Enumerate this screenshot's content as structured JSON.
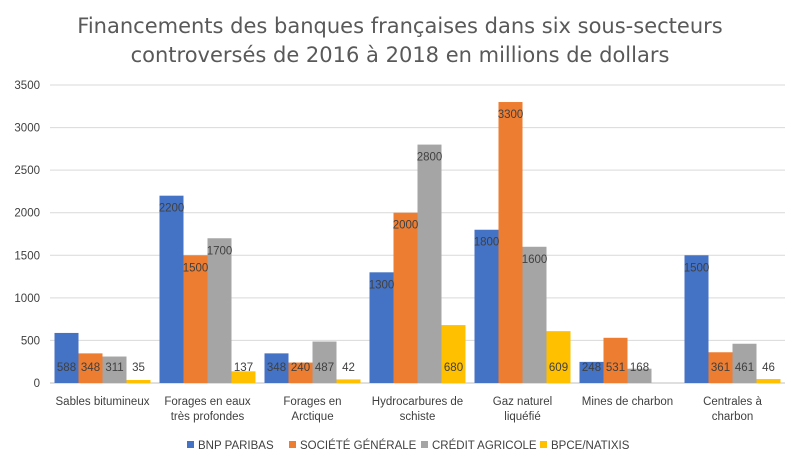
{
  "chart_data": {
    "type": "bar",
    "title_lines": [
      "Financements des banques françaises dans six sous-secteurs",
      "controversés de 2016 à 2018  en millions de dollars"
    ],
    "categories": [
      [
        "Sables  bitumineux"
      ],
      [
        "Forages en eaux",
        "très profondes"
      ],
      [
        "Forages en",
        "Arctique"
      ],
      [
        "Hydrocarbures de",
        "schiste"
      ],
      [
        "Gaz naturel",
        "liquéfié"
      ],
      [
        "Mines de charbon"
      ],
      [
        "Centrales à",
        "charbon"
      ]
    ],
    "series": [
      {
        "name": "BNP PARIBAS",
        "color": "#4472C4",
        "values": [
          588,
          2200,
          348,
          1300,
          1800,
          248,
          1500
        ]
      },
      {
        "name": "SOCIÉTÉ GÉNÉRALE",
        "color": "#ED7D31",
        "values": [
          348,
          1500,
          240,
          2000,
          3300,
          531,
          361
        ]
      },
      {
        "name": "CRÉDIT AGRICOLE",
        "color": "#A5A5A5",
        "values": [
          311,
          1700,
          487,
          2800,
          1600,
          168,
          461
        ]
      },
      {
        "name": "BPCE/NATIXIS",
        "color": "#FFC000",
        "values": [
          35,
          137,
          42,
          680,
          609,
          0,
          46
        ]
      }
    ],
    "data_labels": [
      [
        "588",
        "2200",
        "348",
        "1300",
        "1800",
        "248",
        "1500"
      ],
      [
        "348",
        "1500",
        "240",
        "2000",
        "3300",
        "531",
        "361"
      ],
      [
        "311",
        "1700",
        "487",
        "2800",
        "1600",
        "168",
        "461"
      ],
      [
        "35",
        "137",
        "42",
        "680",
        "609",
        "",
        "46"
      ]
    ],
    "ylim": [
      0,
      3500
    ],
    "yticks": [
      0,
      500,
      1000,
      1500,
      2000,
      2500,
      3000,
      3500
    ],
    "grid": true,
    "legend_position": "bottom"
  }
}
